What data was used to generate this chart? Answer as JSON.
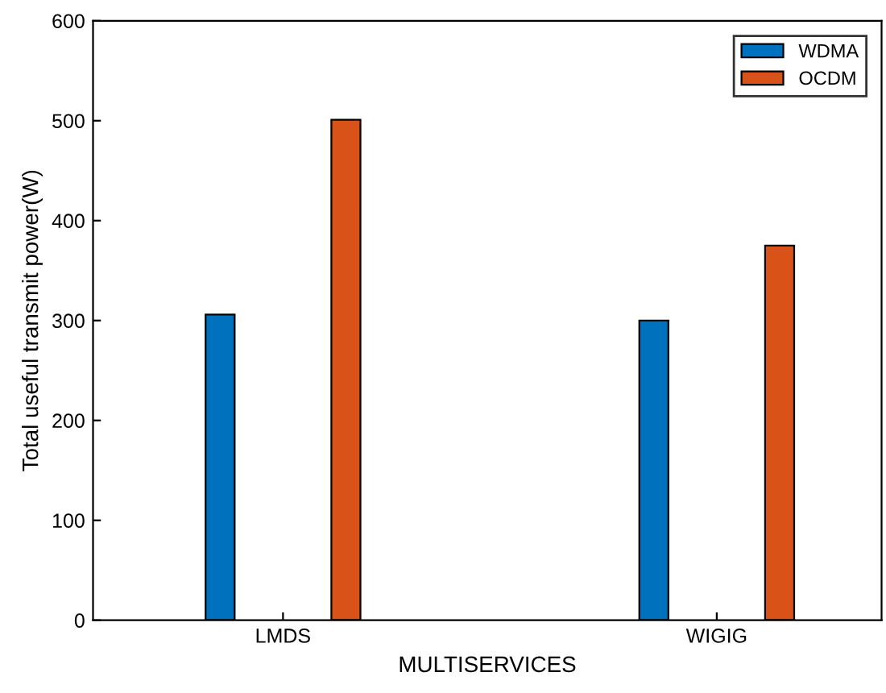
{
  "chart_data": {
    "type": "bar",
    "xlabel": "MULTISERVICES",
    "ylabel": "Total useful transmit power(W)",
    "categories": [
      "LMDS",
      "WIGIG"
    ],
    "series": [
      {
        "name": "WDMA",
        "color": "#0072bd",
        "values": [
          306,
          300
        ]
      },
      {
        "name": "OCDM",
        "color": "#d95319",
        "values": [
          501,
          375
        ]
      }
    ],
    "ylim": [
      0,
      600
    ],
    "yticks": [
      0,
      100,
      200,
      300,
      400,
      500,
      600
    ],
    "grid": false,
    "legend": "top right"
  }
}
